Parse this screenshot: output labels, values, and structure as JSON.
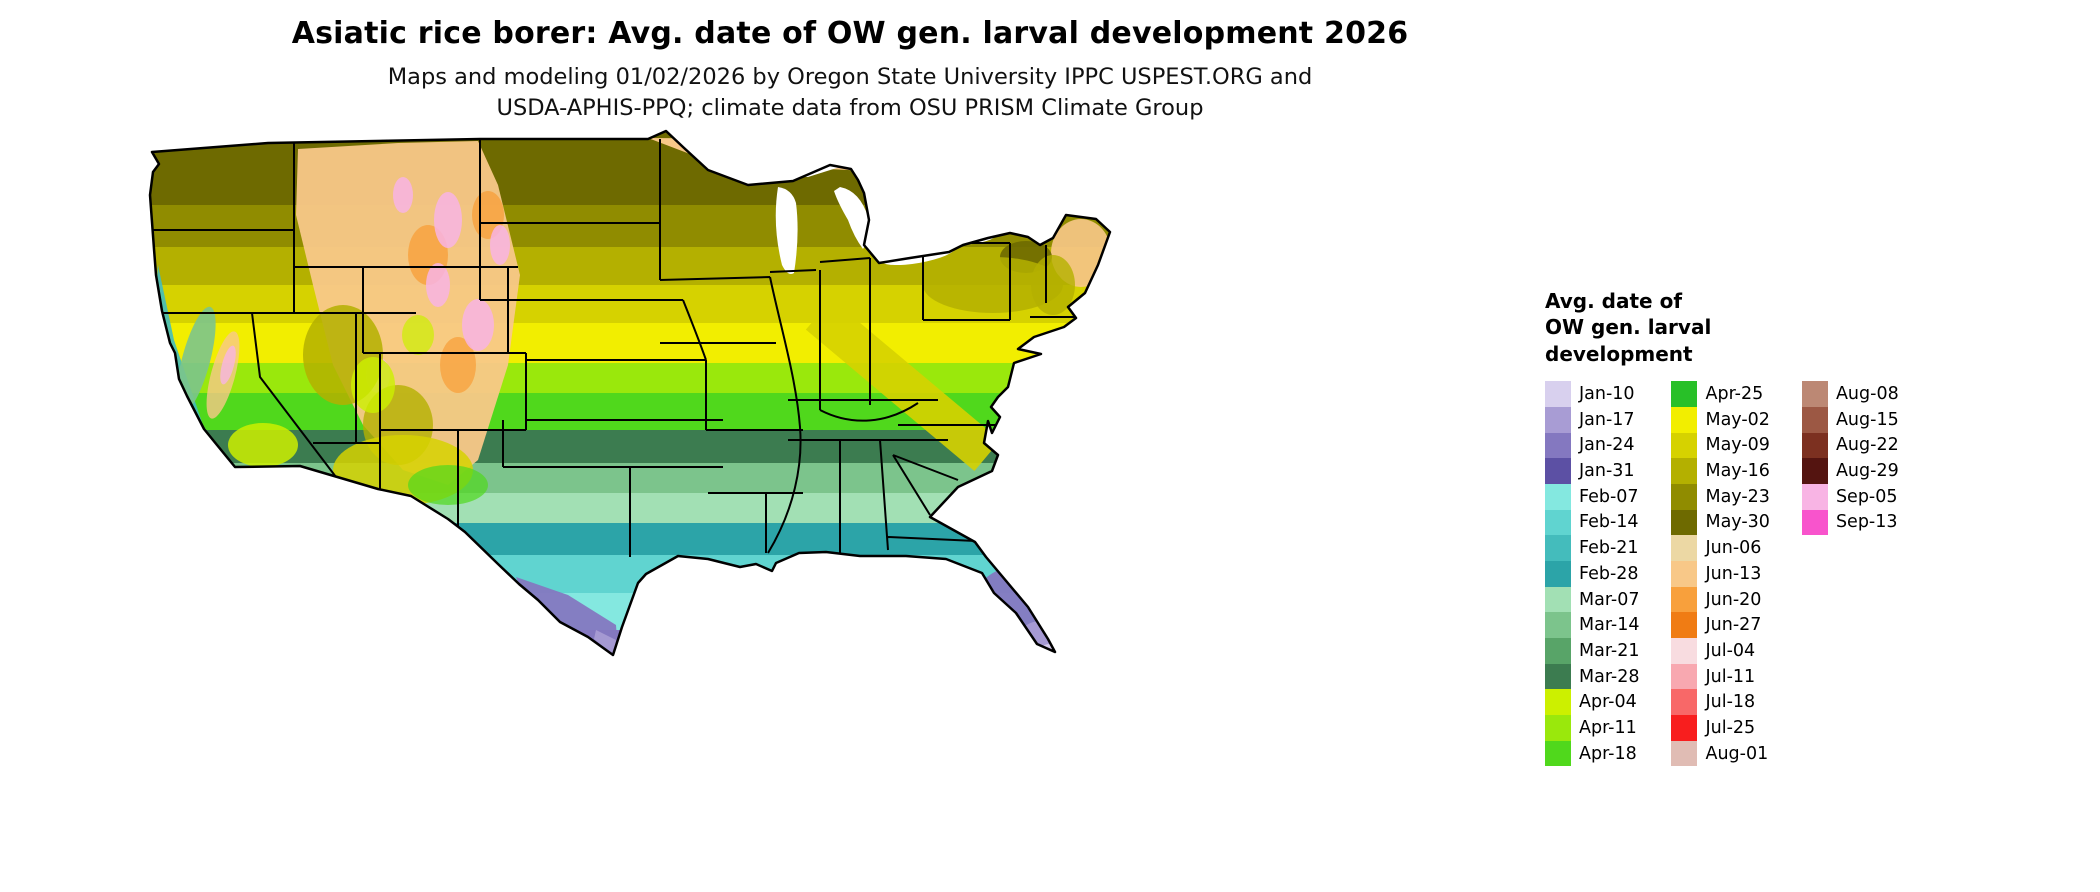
{
  "header": {
    "title": "Asiatic rice borer: Avg. date of OW gen. larval development 2026",
    "subtitle_line1": "Maps and modeling 01/02/2026 by Oregon State University IPPC USPEST.ORG and",
    "subtitle_line2": "USDA-APHIS-PPQ; climate data from OSU PRISM Climate Group"
  },
  "legend": {
    "title_line1": "Avg. date of",
    "title_line2": "OW gen. larval",
    "title_line3": "development",
    "entries": [
      {
        "label": "Jan-10",
        "color": "#d8d0ee"
      },
      {
        "label": "Jan-17",
        "color": "#a89cd4"
      },
      {
        "label": "Jan-24",
        "color": "#8478c0"
      },
      {
        "label": "Jan-31",
        "color": "#5c50a4"
      },
      {
        "label": "Feb-07",
        "color": "#84e8e0"
      },
      {
        "label": "Feb-14",
        "color": "#60d4d0"
      },
      {
        "label": "Feb-21",
        "color": "#44bcbc"
      },
      {
        "label": "Feb-28",
        "color": "#2ca4a8"
      },
      {
        "label": "Mar-07",
        "color": "#a2e0b4"
      },
      {
        "label": "Mar-14",
        "color": "#7cc48c"
      },
      {
        "label": "Mar-21",
        "color": "#58a468"
      },
      {
        "label": "Mar-28",
        "color": "#3c7c50"
      },
      {
        "label": "Apr-04",
        "color": "#ccf000"
      },
      {
        "label": "Apr-11",
        "color": "#9ae80c"
      },
      {
        "label": "Apr-18",
        "color": "#50d81c"
      },
      {
        "label": "Apr-25",
        "color": "#28c028"
      },
      {
        "label": "May-02",
        "color": "#f2ee00"
      },
      {
        "label": "May-09",
        "color": "#d6d200"
      },
      {
        "label": "May-16",
        "color": "#b4b000"
      },
      {
        "label": "May-23",
        "color": "#908c00"
      },
      {
        "label": "May-30",
        "color": "#6e6a00"
      },
      {
        "label": "Jun-06",
        "color": "#ecd8a4"
      },
      {
        "label": "Jun-13",
        "color": "#f8c888"
      },
      {
        "label": "Jun-20",
        "color": "#f8a03c"
      },
      {
        "label": "Jun-27",
        "color": "#f07c14"
      },
      {
        "label": "Jul-04",
        "color": "#f8dce0"
      },
      {
        "label": "Jul-11",
        "color": "#f8a8b0"
      },
      {
        "label": "Jul-18",
        "color": "#f86868"
      },
      {
        "label": "Jul-25",
        "color": "#f81e1e"
      },
      {
        "label": "Aug-01",
        "color": "#e0bcb4"
      },
      {
        "label": "Aug-08",
        "color": "#bc8874"
      },
      {
        "label": "Aug-15",
        "color": "#9c5844"
      },
      {
        "label": "Aug-22",
        "color": "#7c3020"
      },
      {
        "label": "Aug-29",
        "color": "#541410"
      },
      {
        "label": "Sep-05",
        "color": "#f8b4e4"
      },
      {
        "label": "Sep-13",
        "color": "#f854cc"
      }
    ]
  }
}
